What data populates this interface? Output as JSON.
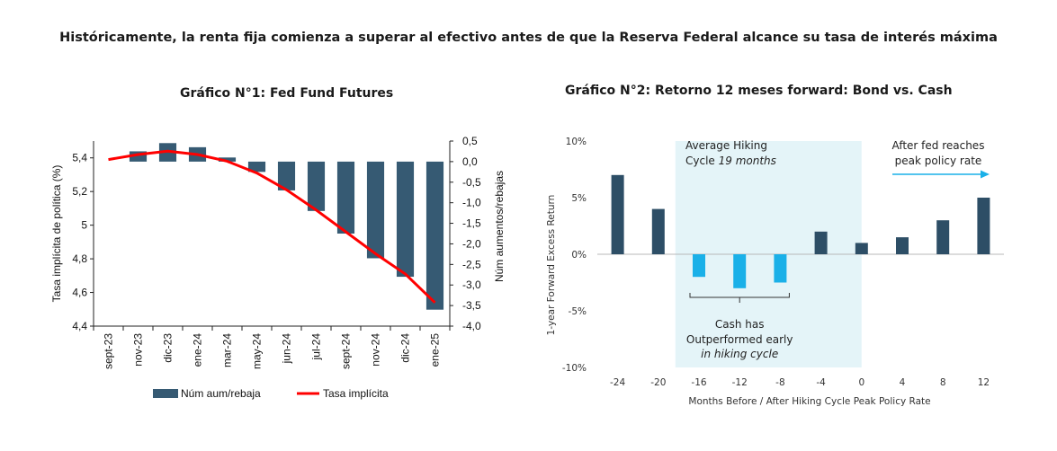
{
  "header": {
    "title": "Históricamente, la renta fija comienza a superar al efectivo antes de que la Reserva Federal alcance su tasa de interés máxima"
  },
  "chart_data": [
    {
      "type": "bar",
      "title": "Gráfico N°1: Fed Fund Futures",
      "categories": [
        "sept-23",
        "nov-23",
        "dic-23",
        "ene-24",
        "mar-24",
        "may-24",
        "jun-24",
        "jul-24",
        "sept-24",
        "nov-24",
        "dic-24",
        "ene-25"
      ],
      "series": [
        {
          "name": "Núm aum/rebaja",
          "axis": "right",
          "type": "bar",
          "color": "#365a73",
          "values": [
            0,
            0.25,
            0.45,
            0.35,
            0.1,
            -0.25,
            -0.7,
            -1.2,
            -1.75,
            -2.35,
            -2.8,
            -3.6
          ]
        },
        {
          "name": "Tasa implícita",
          "axis": "left",
          "type": "line",
          "color": "#ff0000",
          "values": [
            5.39,
            5.42,
            5.44,
            5.42,
            5.38,
            5.31,
            5.21,
            5.09,
            4.96,
            4.83,
            4.71,
            4.54
          ]
        }
      ],
      "ylabel": "Tasa implícita de política (%)",
      "ylim": [
        4.4,
        5.5
      ],
      "yticks": [
        "4,4",
        "4,6",
        "4,8",
        "5",
        "5,2",
        "5,4"
      ],
      "y2label": "Núm aumentos/rebajas",
      "y2lim": [
        -4.0,
        0.5
      ],
      "y2ticks": [
        "0,5",
        "0,0",
        "-0,5",
        "-1,0",
        "-1,5",
        "-2,0",
        "-2,5",
        "-3,0",
        "-3,5",
        "-4,0"
      ],
      "legend": "bottom"
    },
    {
      "type": "bar",
      "title": "Gráfico N°2: Retorno 12 meses forward: Bond vs. Cash",
      "categories": [
        "-24",
        "-20",
        "-16",
        "-12",
        "-8",
        "-4",
        "0",
        "4",
        "8",
        "12"
      ],
      "series": [
        {
          "values": [
            7.0,
            4.0,
            -2.0,
            -3.0,
            -2.5,
            2.0,
            1.0,
            1.5,
            3.0,
            5.0
          ]
        }
      ],
      "colors": {
        "dark": "#2d4e66",
        "light": "#1ab0e8",
        "shade": "#e4f4f8"
      },
      "xlabel": "Months Before / After Hiking Cycle Peak Policy Rate",
      "ylabel": "1-year Forward Excess Return",
      "ylim": [
        -10,
        10
      ],
      "yticks": [
        "10%",
        "5%",
        "0%",
        "-5%",
        "-10%"
      ],
      "annotations": {
        "hiking_1": "Average Hiking",
        "hiking_2": "Cycle 19 months",
        "fed_1": "After fed reaches",
        "fed_2": "peak policy rate",
        "cash_1": "Cash has",
        "cash_2": "Outperformed early",
        "cash_3": "in hiking cycle"
      }
    }
  ]
}
